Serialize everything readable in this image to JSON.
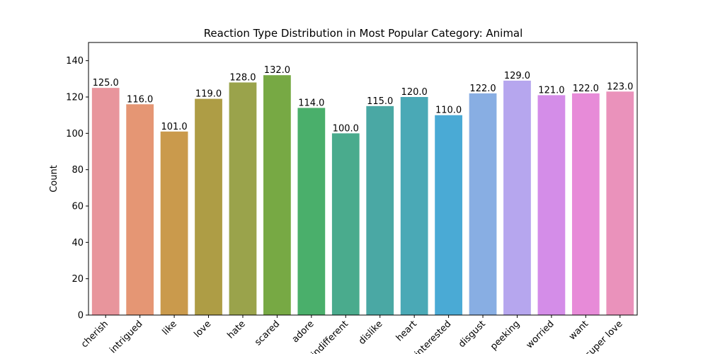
{
  "chart_data": {
    "type": "bar",
    "title": "Reaction Type Distribution in Most Popular Category: Animal",
    "xlabel": "",
    "ylabel": "Count",
    "ylim": [
      0,
      150
    ],
    "yticks": [
      0,
      20,
      40,
      60,
      80,
      100,
      120,
      140
    ],
    "categories": [
      "cherish",
      "intrigued",
      "like",
      "love",
      "hate",
      "scared",
      "adore",
      "indifferent",
      "dislike",
      "heart",
      "interested",
      "disgust",
      "peeking",
      "worried",
      "want",
      "super love"
    ],
    "values": [
      125,
      116,
      101,
      119,
      128,
      132,
      114,
      100,
      115,
      120,
      110,
      122,
      129,
      121,
      122,
      123
    ],
    "value_labels": [
      "125.0",
      "116.0",
      "101.0",
      "119.0",
      "128.0",
      "132.0",
      "114.0",
      "100.0",
      "115.0",
      "120.0",
      "110.0",
      "122.0",
      "129.0",
      "121.0",
      "122.0",
      "123.0"
    ],
    "colors": [
      "#e8959c",
      "#e59674",
      "#ca9a4c",
      "#ae9d45",
      "#9aa34b",
      "#77a944",
      "#4aaf6b",
      "#4aab8d",
      "#4aa8a4",
      "#4aa9b6",
      "#4aaad5",
      "#88aee3",
      "#b6a6ee",
      "#d48de8",
      "#e78bd8",
      "#ea92bb"
    ],
    "grid": false,
    "legend": "none"
  }
}
